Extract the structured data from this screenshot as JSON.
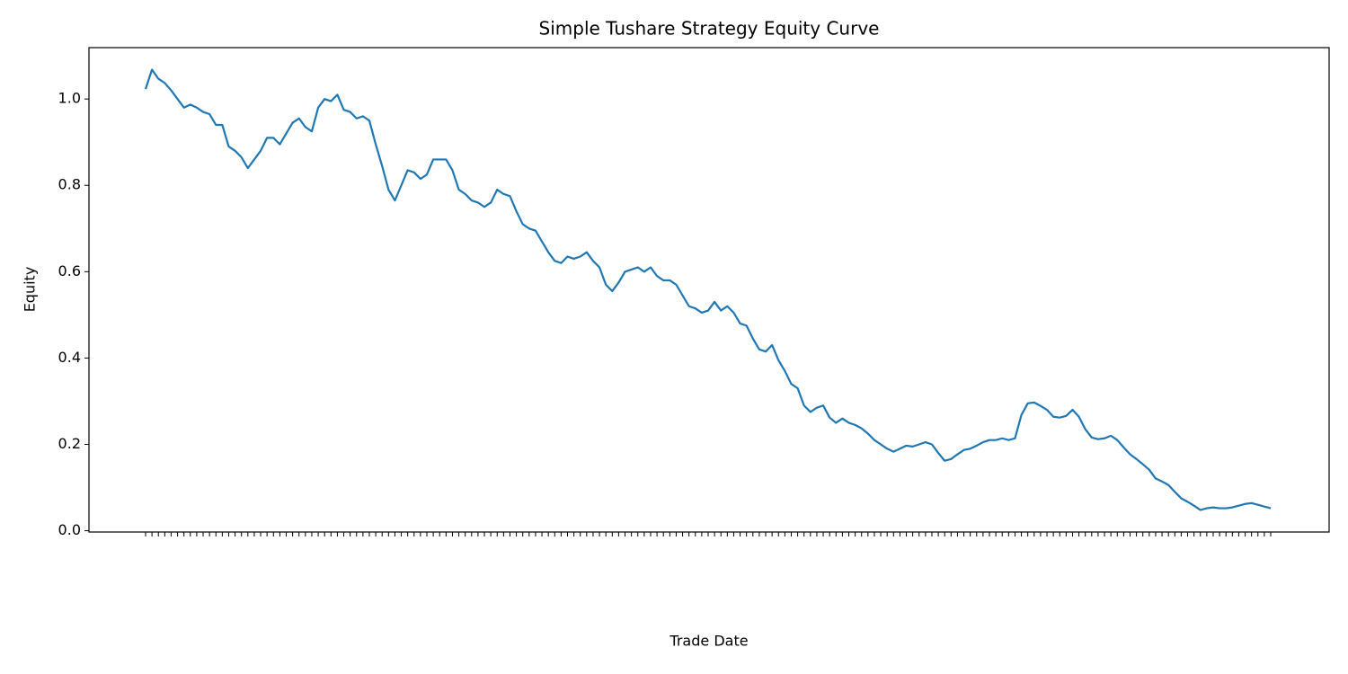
{
  "chart_data": {
    "type": "line",
    "title": "Simple Tushare Strategy Equity Curve",
    "x_label": "Trade Date",
    "y_label": "Equity",
    "categories": [
      null,
      null,
      null,
      null,
      null,
      null,
      null,
      null,
      null,
      null,
      null,
      null,
      null,
      null,
      null,
      null,
      null,
      null,
      null,
      null,
      null,
      null,
      null,
      null,
      null,
      null,
      null,
      null,
      null,
      null,
      null,
      null,
      null,
      null,
      null,
      null,
      null,
      null,
      null,
      null,
      null,
      null,
      null,
      null,
      null,
      null,
      null,
      null,
      null,
      null,
      null,
      null,
      null,
      null,
      null,
      null,
      null,
      null,
      null,
      null,
      null,
      null,
      null,
      null,
      null,
      null,
      null,
      null,
      null,
      null,
      null,
      null,
      null,
      null,
      null,
      null,
      null,
      null,
      null,
      null,
      null,
      null,
      null,
      null,
      null,
      null,
      null,
      null,
      null,
      null,
      null,
      null,
      null,
      null,
      null,
      null,
      null,
      null,
      null,
      null,
      null,
      null,
      null,
      null,
      null,
      null,
      null,
      null,
      null,
      null,
      null,
      null,
      null,
      null,
      null,
      null,
      null,
      null,
      null,
      null,
      null,
      null,
      null,
      null,
      null,
      null,
      null,
      null,
      null,
      null,
      null,
      null,
      null,
      null,
      null,
      null,
      null,
      null,
      null,
      null,
      null,
      null,
      null,
      null,
      null,
      null,
      null,
      null,
      null,
      null,
      null,
      null,
      null,
      null,
      null,
      null,
      null,
      null,
      null,
      null,
      null,
      null,
      null,
      null,
      null,
      null,
      null,
      null,
      null,
      null,
      null,
      null,
      null,
      null,
      null,
      null,
      null
    ],
    "series": [
      {
        "name": "Equity",
        "color": "#1f77b4",
        "values": [
          1.023,
          1.068,
          1.047,
          1.037,
          1.02,
          1.0,
          0.98,
          0.987,
          0.98,
          0.97,
          0.965,
          0.94,
          0.94,
          0.89,
          0.88,
          0.865,
          0.84,
          0.86,
          0.88,
          0.91,
          0.91,
          0.895,
          0.92,
          0.945,
          0.955,
          0.935,
          0.925,
          0.98,
          1.0,
          0.995,
          1.01,
          0.975,
          0.97,
          0.955,
          0.96,
          0.95,
          0.895,
          0.845,
          0.79,
          0.765,
          0.8,
          0.835,
          0.83,
          0.815,
          0.825,
          0.86,
          0.86,
          0.86,
          0.835,
          0.79,
          0.78,
          0.765,
          0.76,
          0.75,
          0.76,
          0.79,
          0.78,
          0.775,
          0.74,
          0.71,
          0.7,
          0.695,
          0.67,
          0.645,
          0.625,
          0.62,
          0.635,
          0.63,
          0.635,
          0.645,
          0.625,
          0.61,
          0.57,
          0.555,
          0.575,
          0.6,
          0.605,
          0.61,
          0.6,
          0.61,
          0.59,
          0.58,
          0.58,
          0.57,
          0.545,
          0.52,
          0.515,
          0.505,
          0.51,
          0.53,
          0.51,
          0.52,
          0.505,
          0.48,
          0.475,
          0.445,
          0.42,
          0.415,
          0.43,
          0.395,
          0.37,
          0.34,
          0.33,
          0.29,
          0.275,
          0.285,
          0.29,
          0.262,
          0.25,
          0.26,
          0.25,
          0.245,
          0.237,
          0.225,
          0.21,
          0.2,
          0.19,
          0.183,
          0.19,
          0.197,
          0.195,
          0.2,
          0.205,
          0.2,
          0.18,
          0.162,
          0.166,
          0.177,
          0.187,
          0.19,
          0.197,
          0.205,
          0.21,
          0.21,
          0.214,
          0.21,
          0.214,
          0.268,
          0.295,
          0.297,
          0.289,
          0.28,
          0.264,
          0.262,
          0.266,
          0.28,
          0.264,
          0.235,
          0.216,
          0.212,
          0.214,
          0.22,
          0.21,
          0.193,
          0.177,
          0.166,
          0.154,
          0.141,
          0.121,
          0.114,
          0.106,
          0.09,
          0.075,
          0.067,
          0.058,
          0.048,
          0.052,
          0.054,
          0.052,
          0.052,
          0.054,
          0.058,
          0.062,
          0.064,
          0.06,
          0.056,
          0.052
        ]
      }
    ],
    "ylim": [
      -0.003,
      1.119
    ],
    "yticks": [
      {
        "value": 0,
        "label": "0.0"
      },
      {
        "value": 0.2,
        "label": "0.2"
      },
      {
        "value": 0.4,
        "label": "0.4"
      },
      {
        "value": 0.6,
        "label": "0.6"
      },
      {
        "value": 0.8,
        "label": "0.8"
      },
      {
        "value": 1,
        "label": "1.0"
      }
    ],
    "grid": false
  }
}
